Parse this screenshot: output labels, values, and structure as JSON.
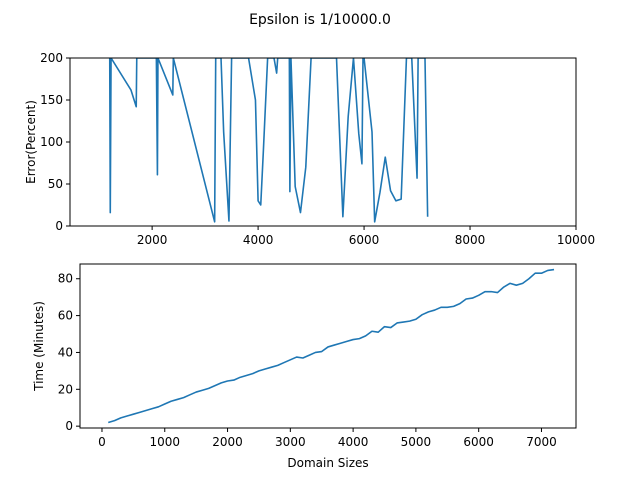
{
  "figure": {
    "title": "Epsilon is 1/10000.0"
  },
  "chart_data": [
    {
      "type": "line",
      "title": "Epsilon is 1/10000.0",
      "xlabel": "",
      "ylabel": "Error(Percent)",
      "xlim": [
        450,
        10000
      ],
      "ylim": [
        0,
        200
      ],
      "xticks": [
        2000,
        4000,
        6000,
        8000,
        10000
      ],
      "xtick_labels": [
        "2000",
        "4000",
        "6000",
        "8000",
        "10000"
      ],
      "yticks": [
        0,
        50,
        100,
        150,
        200
      ],
      "ytick_labels": [
        "0",
        "50",
        "100",
        "150",
        "200"
      ],
      "grid": false,
      "color": "#1f77b4",
      "series": [
        {
          "x": [
            1200,
            1210,
            1225,
            1600,
            1700,
            1710,
            2080,
            2100,
            2110,
            2390,
            2400,
            3180,
            3200,
            3300,
            3350,
            3450,
            3500,
            3520,
            3820,
            3950,
            4000,
            4050,
            4100,
            4180,
            4250,
            4300,
            4350,
            4370,
            4390,
            4590,
            4600,
            4620,
            4700,
            4800,
            4900,
            5000,
            5050,
            5480,
            5600,
            5700,
            5800,
            5900,
            5960,
            5980,
            6000,
            6150,
            6200,
            6300,
            6400,
            6500,
            6600,
            6700,
            6800,
            6820,
            6900,
            7000,
            7020,
            7040,
            7100,
            7150,
            7200
          ],
          "y": [
            200,
            16,
            200,
            162,
            142,
            200,
            200,
            61,
            200,
            156,
            200,
            5,
            200,
            200,
            112,
            6,
            200,
            200,
            200,
            150,
            30,
            25,
            90,
            200,
            200,
            200,
            182,
            200,
            200,
            200,
            41,
            200,
            47,
            16,
            70,
            200,
            200,
            200,
            11,
            130,
            200,
            110,
            74,
            200,
            200,
            112,
            5,
            40,
            82,
            42,
            30,
            32,
            200,
            200,
            200,
            57,
            200,
            200,
            200,
            200,
            11
          ]
        }
      ]
    },
    {
      "type": "line",
      "title": "",
      "xlabel": "Domain Sizes",
      "ylabel": "Time (Minutes)",
      "xlim": [
        -350,
        7550
      ],
      "ylim": [
        -1,
        88
      ],
      "xticks": [
        0,
        1000,
        2000,
        3000,
        4000,
        5000,
        6000,
        7000
      ],
      "xtick_labels": [
        "0",
        "1000",
        "2000",
        "3000",
        "4000",
        "5000",
        "6000",
        "7000"
      ],
      "yticks": [
        0,
        20,
        40,
        60,
        80
      ],
      "ytick_labels": [
        "0",
        "20",
        "40",
        "60",
        "80"
      ],
      "grid": false,
      "color": "#1f77b4",
      "series": [
        {
          "x": [
            100,
            200,
            300,
            400,
            500,
            600,
            700,
            800,
            900,
            1000,
            1100,
            1200,
            1300,
            1400,
            1500,
            1600,
            1700,
            1800,
            1900,
            2000,
            2100,
            2200,
            2300,
            2400,
            2500,
            2600,
            2700,
            2800,
            2900,
            3000,
            3100,
            3200,
            3300,
            3400,
            3500,
            3600,
            3700,
            3800,
            3900,
            4000,
            4100,
            4200,
            4300,
            4400,
            4500,
            4600,
            4700,
            4800,
            4900,
            5000,
            5100,
            5200,
            5300,
            5400,
            5500,
            5600,
            5700,
            5800,
            5900,
            6000,
            6100,
            6200,
            6300,
            6400,
            6500,
            6600,
            6700,
            6800,
            6900,
            7000,
            7100,
            7200
          ],
          "y": [
            2,
            3,
            4.5,
            5.5,
            6.5,
            7.5,
            8.5,
            9.5,
            10.5,
            12,
            13.5,
            14.5,
            15.5,
            17,
            18.5,
            19.5,
            20.5,
            22,
            23.5,
            24.5,
            25,
            26.5,
            27.5,
            28.5,
            30,
            31,
            32,
            33,
            34.5,
            36,
            37.5,
            37,
            38.5,
            40,
            40.5,
            43,
            44,
            45,
            46,
            47,
            47.5,
            49,
            51.5,
            51,
            54,
            53.5,
            56,
            56.5,
            57,
            58,
            60.5,
            62,
            63,
            64.5,
            64.5,
            65,
            66.5,
            69,
            69.5,
            71,
            73,
            73,
            72.5,
            75.5,
            77.5,
            76.5,
            77.5,
            80,
            83,
            83,
            84.5,
            85
          ]
        }
      ]
    }
  ]
}
